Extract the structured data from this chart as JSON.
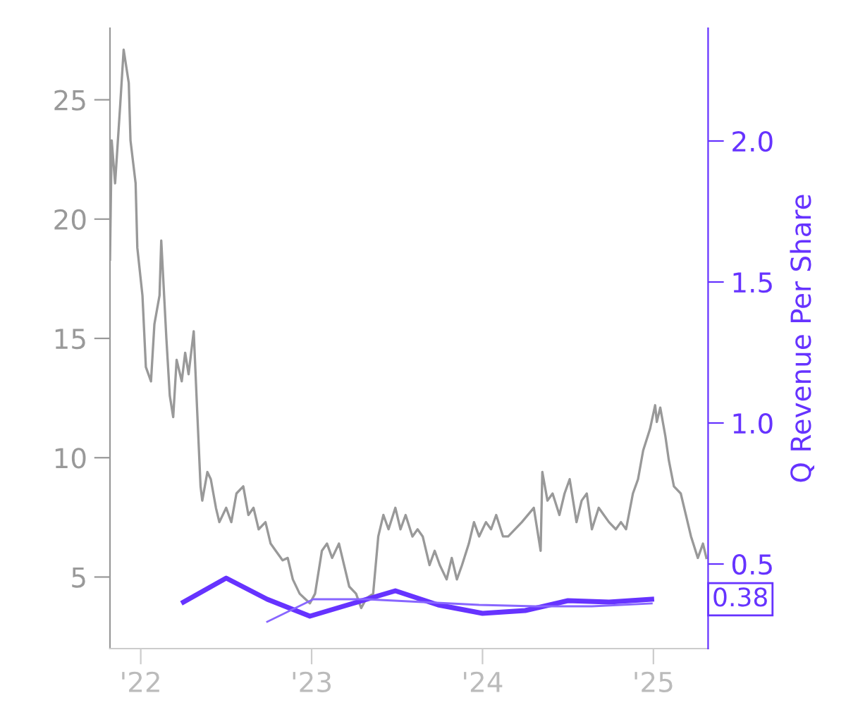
{
  "chart_data": {
    "type": "line",
    "y2label": "Q Revenue Per Share",
    "xlim": [
      2021.82,
      2025.32
    ],
    "xticks": [
      {
        "value": 2022,
        "label": "'22"
      },
      {
        "value": 2023,
        "label": "'23"
      },
      {
        "value": 2024,
        "label": "'24"
      },
      {
        "value": 2025,
        "label": "'25"
      }
    ],
    "ylim": [
      2,
      28
    ],
    "yticks": [
      5,
      10,
      15,
      20,
      25
    ],
    "y2lim": [
      0.2,
      2.4
    ],
    "y2ticks": [
      {
        "value": 0.5,
        "label": "0.5"
      },
      {
        "value": 1.0,
        "label": "1.0"
      },
      {
        "value": 1.5,
        "label": "1.5"
      },
      {
        "value": 2.0,
        "label": "2.0"
      }
    ],
    "grid": false,
    "legend": false,
    "series": [
      {
        "color": "#999999",
        "x": [
          2021.82,
          2021.83,
          2021.85,
          2021.88,
          2021.9,
          2021.93,
          2021.94,
          2021.97,
          2021.98,
          2022.01,
          2022.03,
          2022.06,
          2022.08,
          2022.11,
          2022.12,
          2022.15,
          2022.17,
          2022.19,
          2022.21,
          2022.24,
          2022.26,
          2022.28,
          2022.31,
          2022.33,
          2022.35,
          2022.36,
          2022.39,
          2022.41,
          2022.44,
          2022.46,
          2022.5,
          2022.53,
          2022.56,
          2022.6,
          2022.63,
          2022.66,
          2022.69,
          2022.73,
          2022.76,
          2022.79,
          2022.83,
          2022.86,
          2022.89,
          2022.93,
          2022.96,
          2022.99,
          2023.02,
          2023.06,
          2023.09,
          2023.12,
          2023.16,
          2023.19,
          2023.22,
          2023.26,
          2023.29,
          2023.32,
          2023.36,
          2023.39,
          2023.42,
          2023.45,
          2023.49,
          2023.52,
          2023.55,
          2023.59,
          2023.62,
          2023.65,
          2023.69,
          2023.72,
          2023.75,
          2023.79,
          2023.82,
          2023.85,
          2023.88,
          2023.92,
          2023.95,
          2023.98,
          2024.02,
          2024.05,
          2024.08,
          2024.12,
          2024.15,
          2024.23,
          2024.3,
          2024.34,
          2024.35,
          2024.38,
          2024.41,
          2024.45,
          2024.48,
          2024.51,
          2024.55,
          2024.58,
          2024.61,
          2024.64,
          2024.68,
          2024.71,
          2024.74,
          2024.78,
          2024.81,
          2024.84,
          2024.88,
          2024.91,
          2024.94,
          2024.98,
          2025.01,
          2025.02,
          2025.04,
          2025.07,
          2025.09,
          2025.12,
          2025.16,
          2025.19,
          2025.22,
          2025.26,
          2025.29,
          2025.31
        ],
        "values": [
          18.3,
          23.3,
          21.5,
          24.8,
          27.1,
          25.7,
          23.3,
          21.5,
          18.8,
          16.8,
          13.8,
          13.2,
          15.6,
          16.8,
          19.1,
          15.0,
          12.6,
          11.7,
          14.1,
          13.2,
          14.4,
          13.5,
          15.3,
          12.0,
          8.8,
          8.2,
          9.4,
          9.1,
          7.9,
          7.3,
          7.9,
          7.3,
          8.5,
          8.8,
          7.6,
          7.9,
          7.0,
          7.3,
          6.4,
          6.1,
          5.7,
          5.8,
          4.9,
          4.3,
          4.1,
          3.9,
          4.3,
          6.1,
          6.4,
          5.8,
          6.4,
          5.5,
          4.6,
          4.3,
          3.7,
          4.1,
          4.3,
          6.7,
          7.6,
          7.0,
          7.9,
          7.0,
          7.6,
          6.7,
          7.0,
          6.7,
          5.5,
          6.1,
          5.5,
          4.9,
          5.8,
          4.9,
          5.5,
          6.4,
          7.3,
          6.7,
          7.3,
          7.0,
          7.6,
          6.7,
          6.7,
          7.3,
          7.9,
          6.1,
          9.4,
          8.2,
          8.5,
          7.6,
          8.5,
          9.1,
          7.3,
          8.2,
          8.5,
          7.0,
          7.9,
          7.6,
          7.3,
          7.0,
          7.3,
          7.0,
          8.5,
          9.1,
          10.3,
          11.2,
          12.2,
          11.5,
          12.1,
          10.9,
          9.9,
          8.8,
          8.5,
          7.6,
          6.7,
          5.8,
          6.4,
          5.8
        ]
      },
      {
        "color": "#6633ff",
        "axis": "y2",
        "x": [
          2022.25,
          2022.5,
          2022.74,
          2022.99,
          2023.24,
          2023.49,
          2023.74,
          2024.0,
          2024.25,
          2024.5,
          2024.74,
          2024.99
        ],
        "values": [
          0.365,
          0.45,
          0.375,
          0.315,
          0.36,
          0.405,
          0.355,
          0.325,
          0.335,
          0.37,
          0.365,
          0.375
        ]
      },
      {
        "color": "#8866ff",
        "axis": "y2",
        "x": [
          2022.74,
          2023.01,
          2023.32,
          2023.65,
          2023.98,
          2024.31,
          2024.64,
          2024.99
        ],
        "values": [
          0.295,
          0.375,
          0.375,
          0.365,
          0.355,
          0.35,
          0.35,
          0.36
        ]
      }
    ],
    "annotations": [
      "0.38"
    ]
  }
}
